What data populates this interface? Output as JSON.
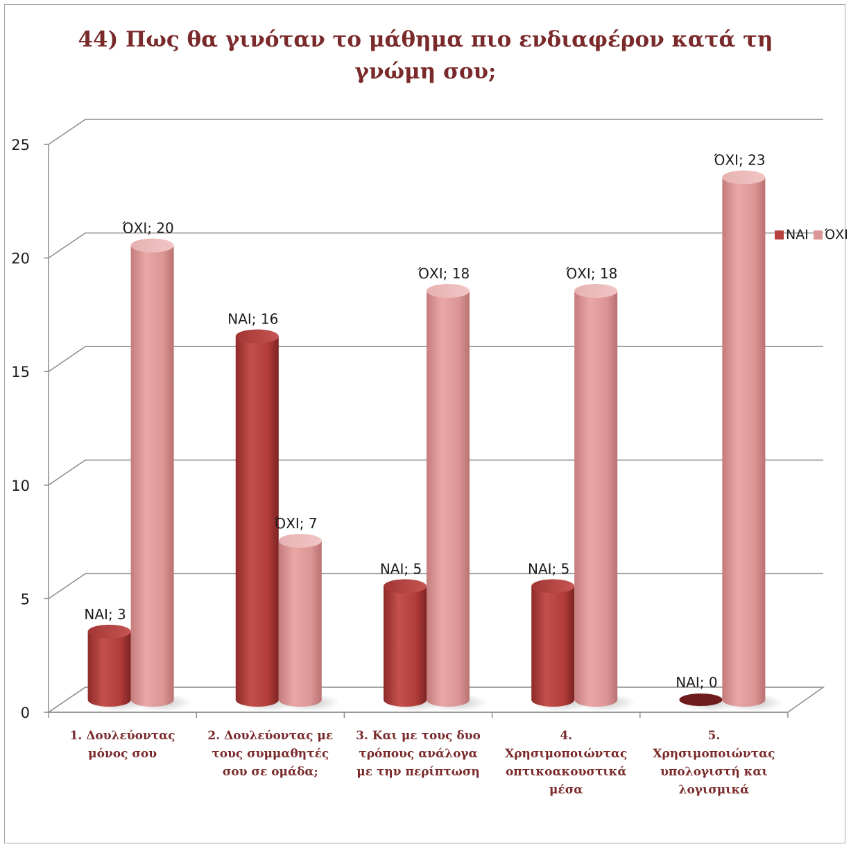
{
  "chart_data": {
    "type": "bar",
    "title_lines": [
      "44)  Πως θα γινόταν το μάθημα πιο ενδιαφέρον κατά τη",
      "γνώμη σου;"
    ],
    "categories": [
      [
        "1. Δουλεύοντας",
        "μόνος σου"
      ],
      [
        "2. Δουλεύοντας με",
        "τους συμμαθητές",
        "σου σε ομάδα;"
      ],
      [
        "3. Και με τους δυο",
        "τρόπους ανάλογα",
        "με την περίπτωση"
      ],
      [
        "4.",
        "Χρησιμοποιώντας",
        "οπτικοακουστικά",
        "μέσα"
      ],
      [
        "5.",
        "Χρησιμοποιώντας",
        "υπολογιστή και",
        "λογισμικά"
      ]
    ],
    "series": [
      {
        "name": "ΝΑΙ",
        "values": [
          3,
          16,
          5,
          5,
          0
        ],
        "color": "#b8403e",
        "labels": [
          "ΝΑΙ; 3",
          "ΝΑΙ; 16",
          "ΝΑΙ; 5",
          "ΝΑΙ; 5",
          "ΝΑΙ; 0"
        ]
      },
      {
        "name": "ΌΧΙ",
        "values": [
          20,
          7,
          18,
          18,
          23
        ],
        "color": "#dd9796",
        "labels": [
          "ΌΧΙ; 20",
          "ΌΧΙ; 7",
          "ΌΧΙ; 18",
          "ΌΧΙ; 18",
          "ΌΧΙ; 23"
        ]
      }
    ],
    "y_ticks": [
      "0",
      "5",
      "10",
      "15",
      "20",
      "25"
    ],
    "ylim": [
      0,
      25
    ],
    "grid": true,
    "legend_position": "right"
  }
}
